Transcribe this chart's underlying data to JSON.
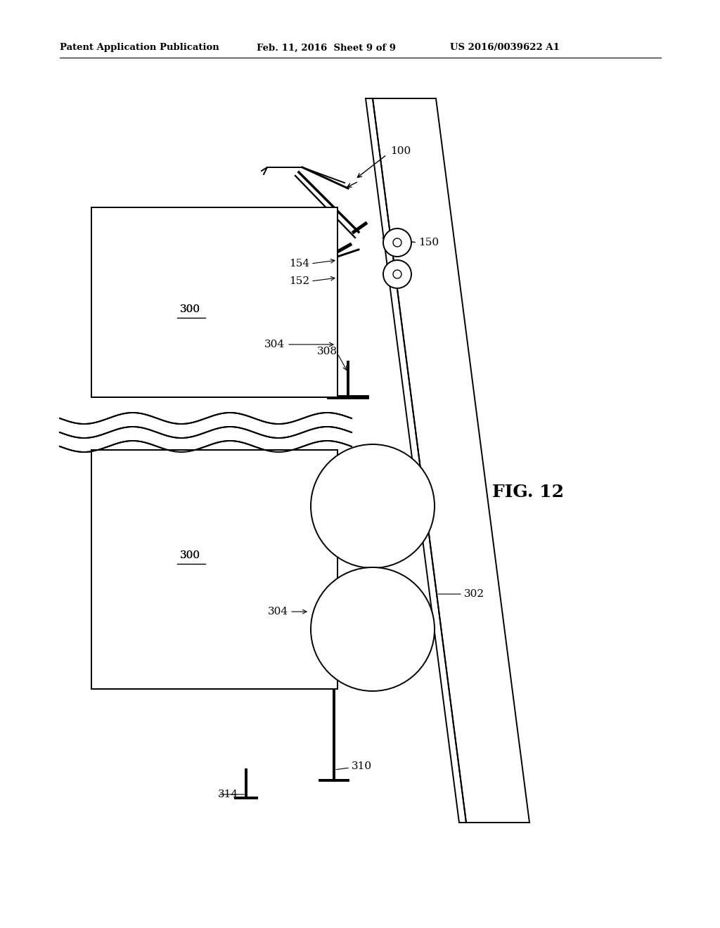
{
  "title_left": "Patent Application Publication",
  "title_mid": "Feb. 11, 2016  Sheet 9 of 9",
  "title_right": "US 2016/0039622 A1",
  "fig_label": "FIG. 12",
  "bg_color": "#ffffff",
  "line_color": "#000000",
  "lw": 1.4
}
